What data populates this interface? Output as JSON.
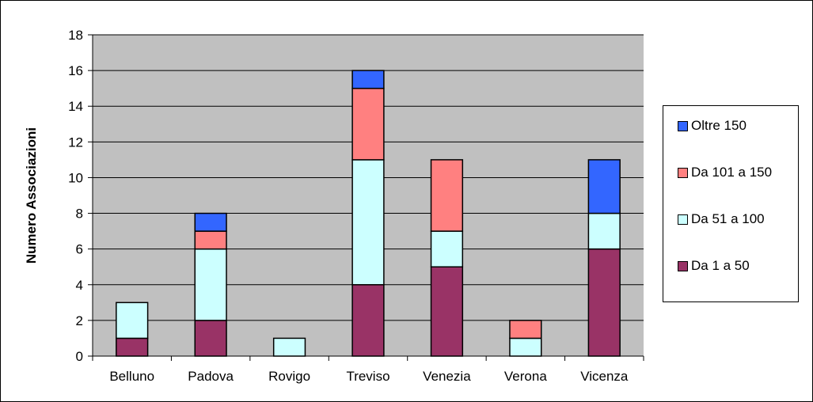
{
  "chart_data": {
    "type": "bar",
    "stacked": true,
    "categories": [
      "Belluno",
      "Padova",
      "Rovigo",
      "Treviso",
      "Venezia",
      "Verona",
      "Vicenza"
    ],
    "series": [
      {
        "name": "Da 1 a 50",
        "color": "#993366",
        "values": [
          1,
          2,
          0,
          4,
          5,
          0,
          6
        ]
      },
      {
        "name": "Da 51 a 100",
        "color": "#CCFFFF",
        "values": [
          2,
          4,
          1,
          7,
          2,
          1,
          2
        ]
      },
      {
        "name": "Da 101 a 150",
        "color": "#FF8080",
        "values": [
          0,
          1,
          0,
          4,
          4,
          1,
          0
        ]
      },
      {
        "name": "Oltre 150",
        "color": "#3366FF",
        "values": [
          0,
          1,
          0,
          1,
          0,
          0,
          3
        ]
      }
    ],
    "ylabel": "Numero Associazioni",
    "xlabel": "",
    "ylim": [
      0,
      18
    ],
    "yticks": [
      0,
      2,
      4,
      6,
      8,
      10,
      12,
      14,
      16,
      18
    ],
    "grid": true,
    "plot_background": "#C0C0C0",
    "legend_position": "right",
    "legend_order": [
      "Oltre 150",
      "Da 101 a 150",
      "Da 51 a 100",
      "Da 1 a 50"
    ]
  }
}
